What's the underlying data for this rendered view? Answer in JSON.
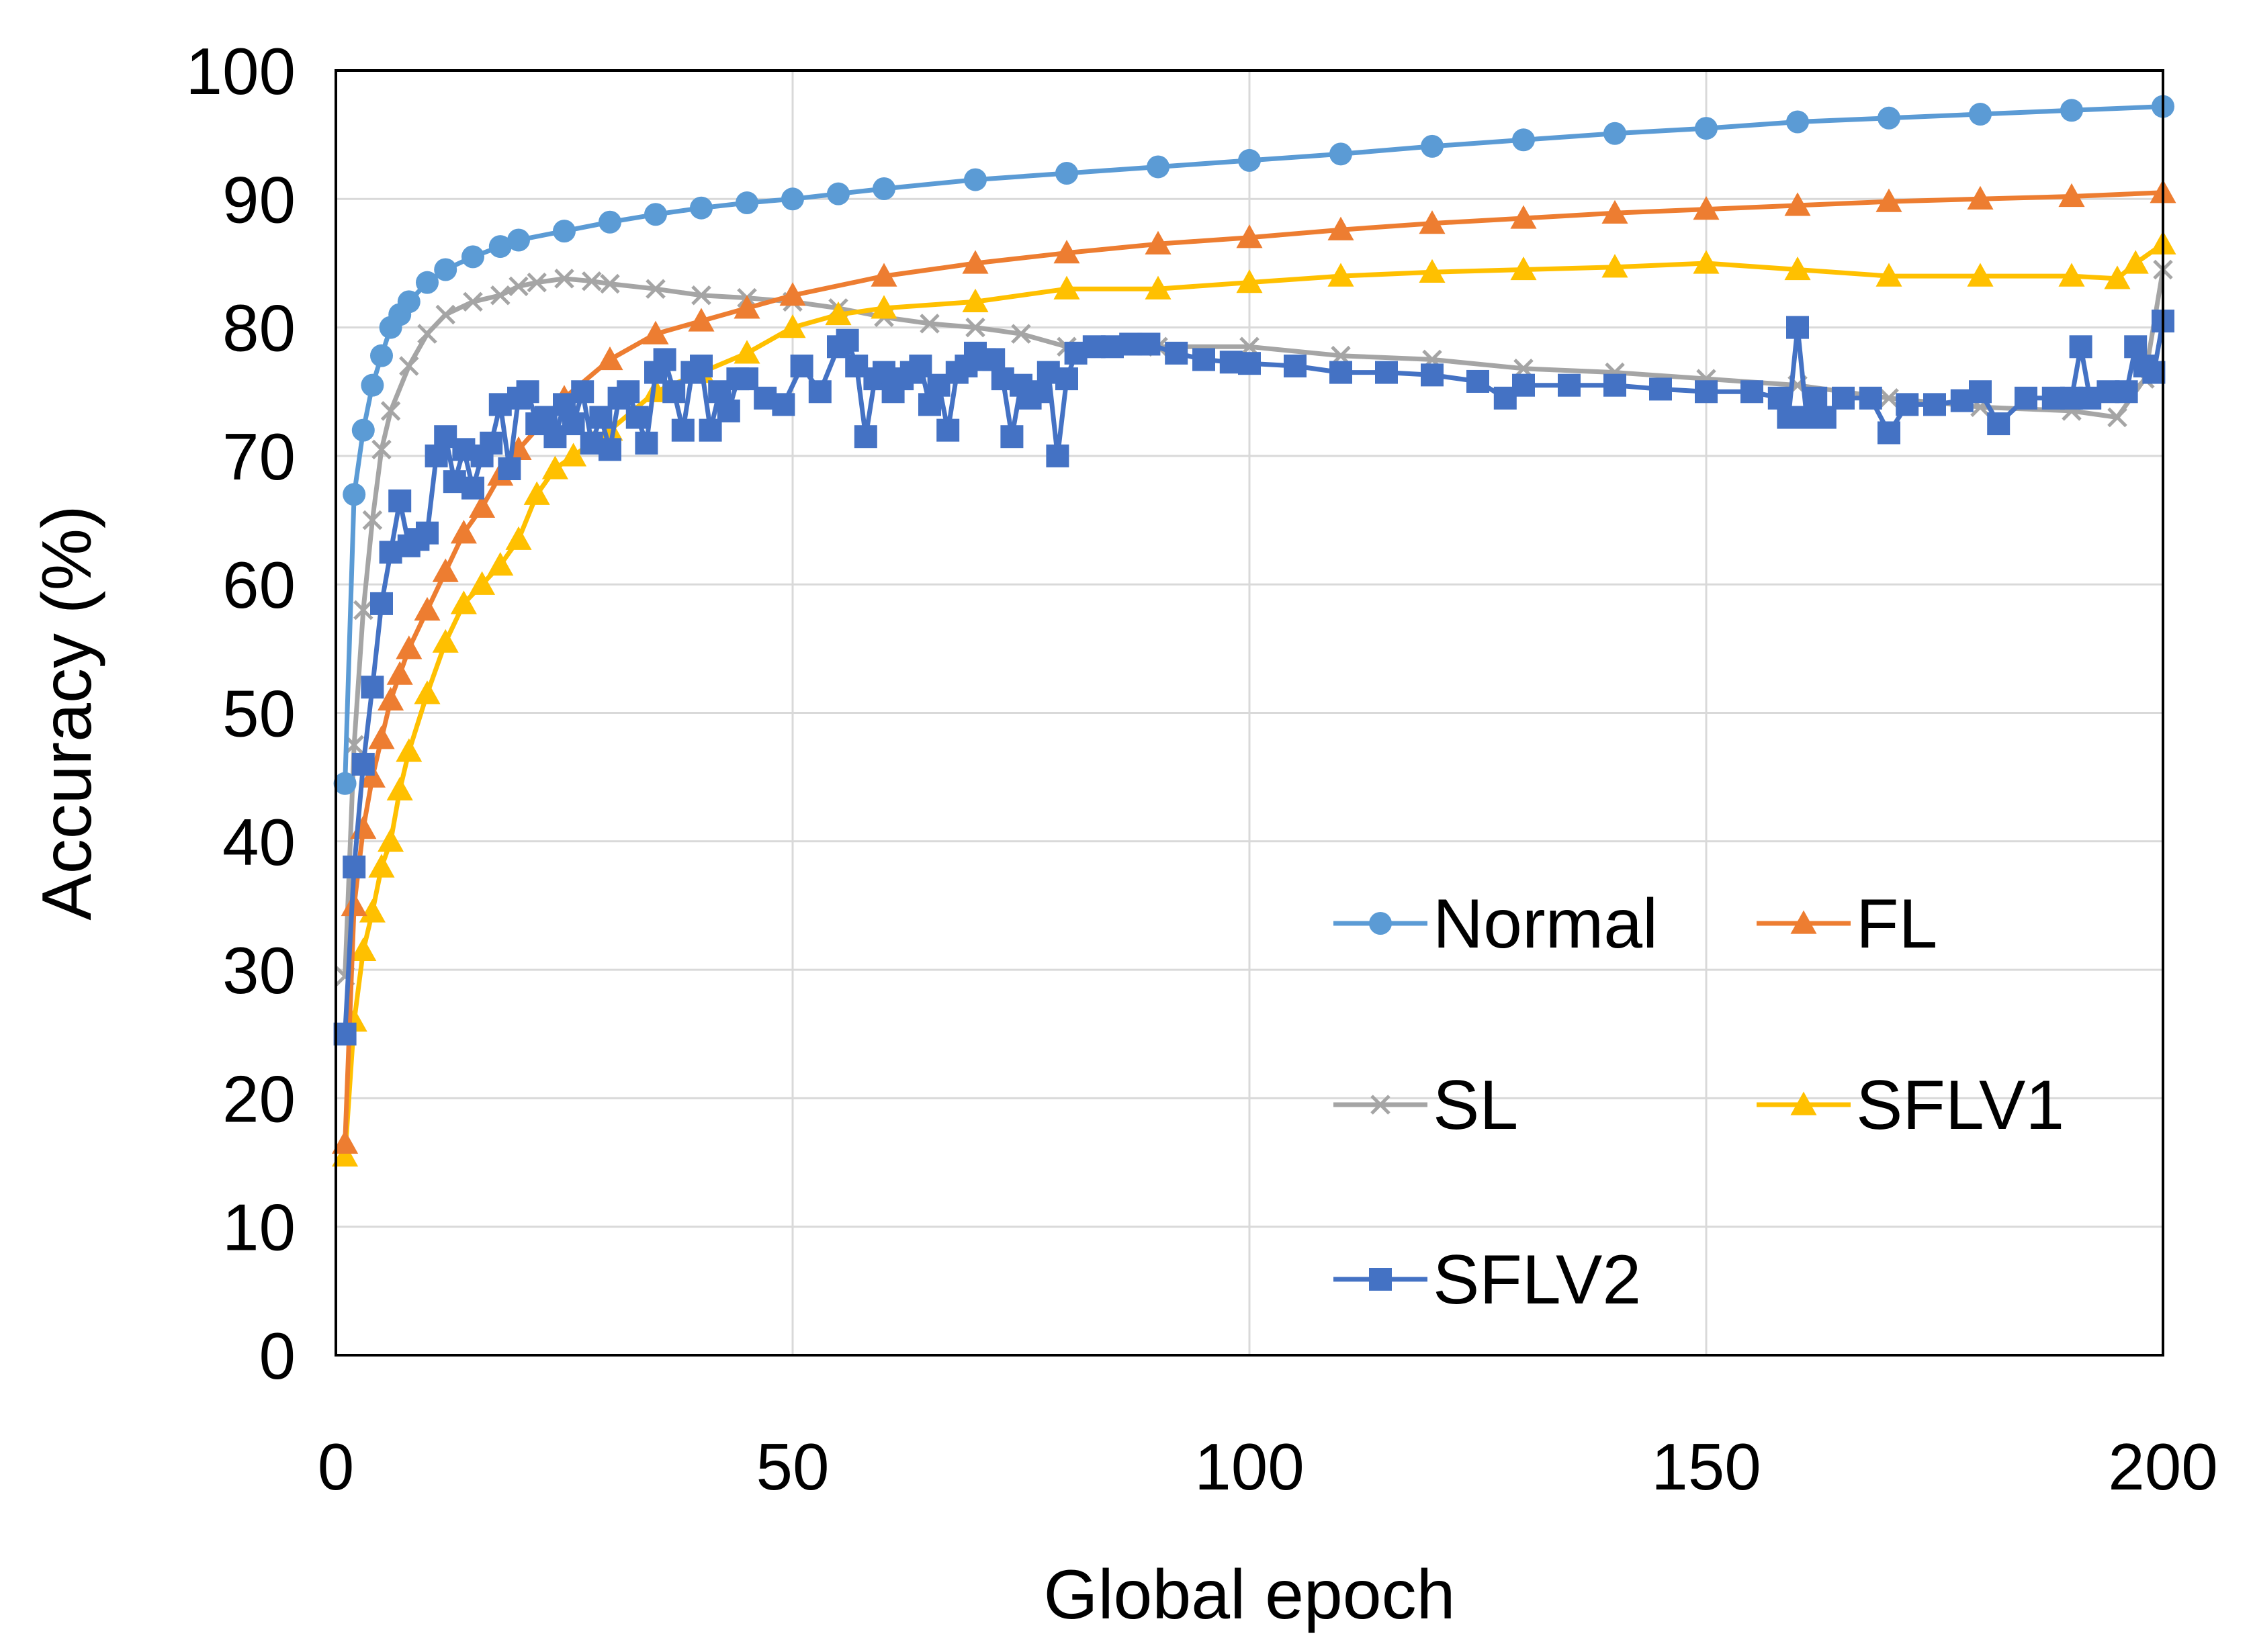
{
  "chart_data": {
    "type": "line",
    "title": "",
    "xlabel": "Global epoch",
    "ylabel": "Accuracy (%)",
    "xlim": [
      0,
      200
    ],
    "ylim": [
      0,
      100
    ],
    "xticks": [
      "0",
      "50",
      "100",
      "150",
      "200"
    ],
    "yticks": [
      "0",
      "10",
      "20",
      "30",
      "40",
      "50",
      "60",
      "70",
      "80",
      "90",
      "100"
    ],
    "grid": true,
    "legend_position": "bottom-right",
    "series": [
      {
        "name": "Normal",
        "color": "#5B9BD5",
        "marker": "circle",
        "x": [
          1,
          2,
          3,
          4,
          5,
          6,
          7,
          8,
          10,
          12,
          15,
          18,
          20,
          25,
          30,
          35,
          40,
          45,
          50,
          55,
          60,
          70,
          80,
          90,
          100,
          110,
          120,
          130,
          140,
          150,
          160,
          170,
          180,
          190,
          200
        ],
        "y": [
          44.5,
          67,
          72,
          75.5,
          77.8,
          80,
          81,
          82,
          83.5,
          84.5,
          85.5,
          86.3,
          86.8,
          87.5,
          88.2,
          88.8,
          89.3,
          89.7,
          90,
          90.4,
          90.8,
          91.5,
          92,
          92.5,
          93,
          93.5,
          94.1,
          94.6,
          95.1,
          95.5,
          96,
          96.3,
          96.6,
          96.9,
          97.2
        ]
      },
      {
        "name": "FL",
        "color": "#ED7D31",
        "marker": "triangle",
        "x": [
          1,
          2,
          3,
          4,
          5,
          6,
          7,
          8,
          10,
          12,
          14,
          16,
          18,
          20,
          25,
          30,
          35,
          40,
          45,
          50,
          60,
          70,
          80,
          90,
          100,
          110,
          120,
          130,
          140,
          150,
          160,
          170,
          180,
          190,
          200
        ],
        "y": [
          16.5,
          35,
          41,
          45,
          48,
          51,
          53,
          55,
          58,
          61,
          64,
          66,
          68.5,
          70.5,
          74.5,
          77.5,
          79.5,
          80.5,
          81.5,
          82.5,
          84,
          85,
          85.8,
          86.5,
          87,
          87.6,
          88.1,
          88.5,
          88.9,
          89.2,
          89.5,
          89.8,
          90,
          90.2,
          90.5
        ]
      },
      {
        "name": "SL",
        "color": "#A5A5A5",
        "marker": "x",
        "x": [
          1,
          2,
          3,
          4,
          5,
          6,
          8,
          10,
          12,
          15,
          18,
          20,
          22,
          25,
          28,
          30,
          35,
          40,
          45,
          50,
          55,
          60,
          65,
          70,
          75,
          80,
          85,
          90,
          100,
          110,
          120,
          130,
          140,
          150,
          160,
          170,
          180,
          190,
          195,
          198,
          200
        ],
        "y": [
          29.5,
          47.5,
          58,
          65,
          70.5,
          73.5,
          77,
          79.5,
          81,
          82,
          82.5,
          83.2,
          83.5,
          83.8,
          83.6,
          83.4,
          83,
          82.5,
          82.3,
          82,
          81.5,
          80.8,
          80.3,
          80,
          79.5,
          78.5,
          78.5,
          78.5,
          78.5,
          77.8,
          77.5,
          76.8,
          76.5,
          76,
          75.5,
          74.5,
          73.8,
          73.5,
          73,
          76,
          84.5
        ]
      },
      {
        "name": "SFLV1",
        "color": "#FFC000",
        "marker": "triangle",
        "x": [
          1,
          2,
          3,
          4,
          5,
          6,
          7,
          8,
          10,
          12,
          14,
          16,
          18,
          20,
          22,
          24,
          26,
          28,
          30,
          35,
          40,
          45,
          50,
          55,
          60,
          70,
          80,
          90,
          100,
          110,
          120,
          130,
          140,
          150,
          160,
          170,
          180,
          190,
          195,
          197,
          200
        ],
        "y": [
          15.5,
          26,
          31.5,
          34.5,
          38,
          40,
          44,
          47,
          51.5,
          55.5,
          58.5,
          60,
          61.5,
          63.5,
          67,
          69,
          70,
          71,
          72,
          75,
          76.5,
          78,
          80,
          81,
          81.5,
          82,
          83,
          83,
          83.5,
          84,
          84.3,
          84.5,
          84.7,
          85,
          84.5,
          84,
          84,
          84,
          83.8,
          85,
          86.5
        ]
      },
      {
        "name": "SFLV2",
        "color": "#4472C4",
        "marker": "square",
        "x": [
          1,
          2,
          3,
          4,
          5,
          6,
          7,
          8,
          9,
          10,
          11,
          12,
          13,
          14,
          15,
          16,
          17,
          18,
          19,
          20,
          21,
          22,
          23,
          24,
          25,
          26,
          27,
          28,
          29,
          30,
          31,
          32,
          33,
          34,
          35,
          36,
          37,
          38,
          39,
          40,
          41,
          42,
          43,
          44,
          45,
          47,
          49,
          51,
          53,
          55,
          56,
          57,
          58,
          59,
          60,
          61,
          62,
          63,
          64,
          65,
          66,
          67,
          68,
          69,
          70,
          71,
          72,
          73,
          74,
          75,
          76,
          77,
          78,
          79,
          80,
          81,
          83,
          85,
          87,
          89,
          92,
          95,
          98,
          100,
          105,
          110,
          115,
          120,
          125,
          128,
          130,
          135,
          140,
          145,
          150,
          155,
          158,
          159,
          160,
          161,
          162,
          163,
          165,
          168,
          170,
          172,
          175,
          178,
          180,
          182,
          185,
          188,
          190,
          191,
          192,
          194,
          196,
          197,
          198,
          199,
          200
        ],
        "y": [
          25,
          38,
          46,
          52,
          58.5,
          62.5,
          66.5,
          63,
          63.5,
          64,
          70,
          71.5,
          68,
          70.5,
          67.5,
          70,
          71,
          74,
          69,
          74.5,
          75,
          72.5,
          73,
          71.5,
          74,
          72.5,
          75,
          71,
          73,
          70.5,
          74.5,
          75,
          73,
          71,
          76.5,
          77.5,
          75,
          72,
          76.5,
          77,
          72,
          75,
          73.5,
          76,
          76,
          74.5,
          74,
          77,
          75,
          78.5,
          79,
          77,
          71.5,
          76,
          76.5,
          75,
          76,
          76.5,
          77,
          74,
          75.5,
          72,
          76.5,
          77,
          78,
          77.5,
          77.5,
          76,
          71.5,
          75.5,
          74.5,
          75,
          76.5,
          70,
          76,
          78,
          78.5,
          78.5,
          78.7,
          78.7,
          78,
          77.5,
          77.3,
          77.2,
          77,
          76.5,
          76.5,
          76.3,
          75.8,
          74.5,
          75.5,
          75.5,
          75.5,
          75.2,
          75,
          75,
          74.5,
          73,
          80,
          73,
          74.5,
          73,
          74.5,
          74.5,
          71.8,
          74,
          74,
          74.3,
          75,
          72.5,
          74.5,
          74.5,
          74.5,
          78.5,
          74.5,
          75,
          75,
          78.5,
          77,
          76.5,
          80.5
        ]
      }
    ]
  }
}
